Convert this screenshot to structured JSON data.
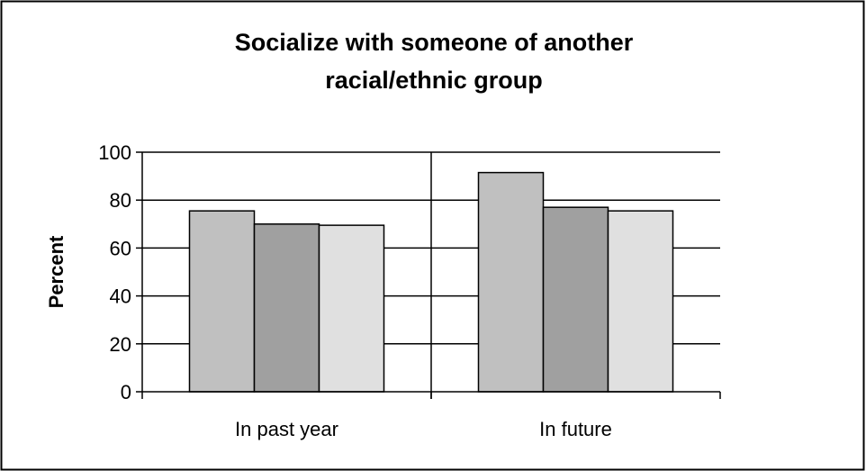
{
  "chart_data": {
    "type": "bar",
    "title_lines": [
      "Socialize with someone of another",
      "racial/ethnic group"
    ],
    "ylabel": "Percent",
    "xlabel": "",
    "ylim": [
      0,
      100
    ],
    "yticks": [
      0,
      20,
      40,
      60,
      80,
      100
    ],
    "grid": true,
    "categories": [
      "In past year",
      "In future"
    ],
    "series": [
      {
        "values": [
          75.5,
          91.5
        ],
        "color": "#c0c0c0"
      },
      {
        "values": [
          70,
          77
        ],
        "color": "#a0a0a0"
      },
      {
        "values": [
          69.5,
          75.5
        ],
        "color": "#e0e0e0"
      }
    ]
  }
}
